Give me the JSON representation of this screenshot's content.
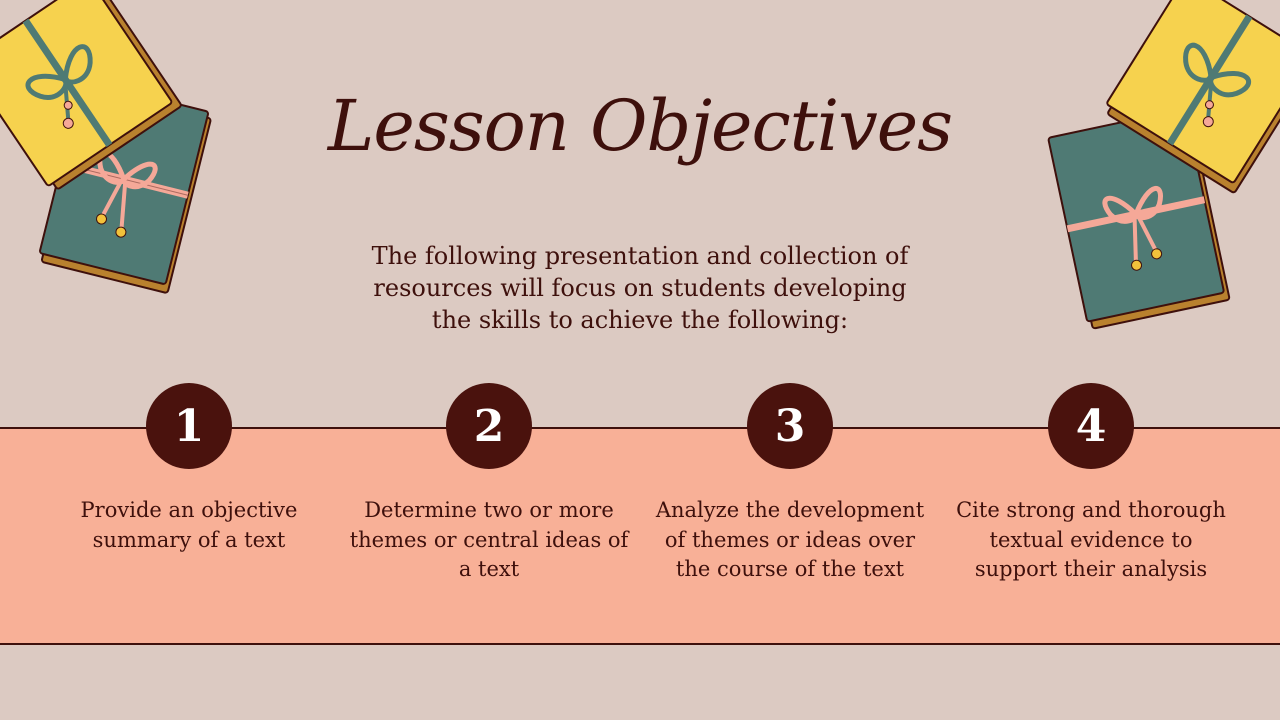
{
  "slide": {
    "title": "Lesson Objectives",
    "intro": "The following presentation and collection of resources will focus on students developing the skills to achieve the following:",
    "objectives": [
      {
        "number": "1",
        "text": "Provide an objective summary of a text"
      },
      {
        "number": "2",
        "text": "Determine two or more themes or central ideas of a text"
      },
      {
        "number": "3",
        "text": "Analyze the development of themes or ideas over the course of the text"
      },
      {
        "number": "4",
        "text": "Cite strong and thorough textual evidence to support their analysis"
      }
    ]
  },
  "colors": {
    "background": "#dccac2",
    "band": "#f8b097",
    "text_dark": "#3e100c",
    "badge": "#4a120d",
    "book_yellow": "#f6d24e",
    "book_teal": "#4f7a74",
    "ribbon_pink": "#f5a898"
  },
  "decorations": [
    {
      "name": "wrapped-books-top-left",
      "icon": "book-stack-icon"
    },
    {
      "name": "wrapped-books-top-right",
      "icon": "book-stack-icon"
    }
  ]
}
